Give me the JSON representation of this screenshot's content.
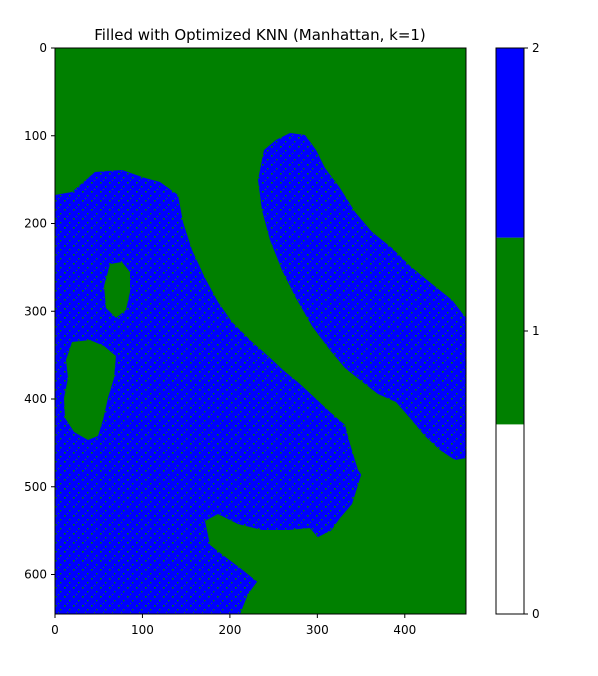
{
  "chart_data": {
    "type": "heatmap",
    "title": "Filled with Optimized KNN (Manhattan, k=1)",
    "xlabel": "",
    "ylabel": "",
    "xlim": [
      0,
      470
    ],
    "ylim": [
      645,
      0
    ],
    "x_ticks": [
      0,
      100,
      200,
      300,
      400
    ],
    "y_ticks": [
      0,
      100,
      200,
      300,
      400,
      500,
      600
    ],
    "image_description_values": "2D label grid of Italy region; green = land (value 1), blue = sea (value 2) with scattered green noise in sea",
    "colorbar": {
      "ticks": [
        0,
        1,
        2
      ],
      "colors": [
        "#ffffff",
        "#008000",
        "#0000ff"
      ],
      "boundaries": [
        0,
        0.67,
        1.33,
        2
      ]
    }
  },
  "colors": {
    "land": "#008000",
    "sea": "#0000ff",
    "empty": "#ffffff"
  }
}
